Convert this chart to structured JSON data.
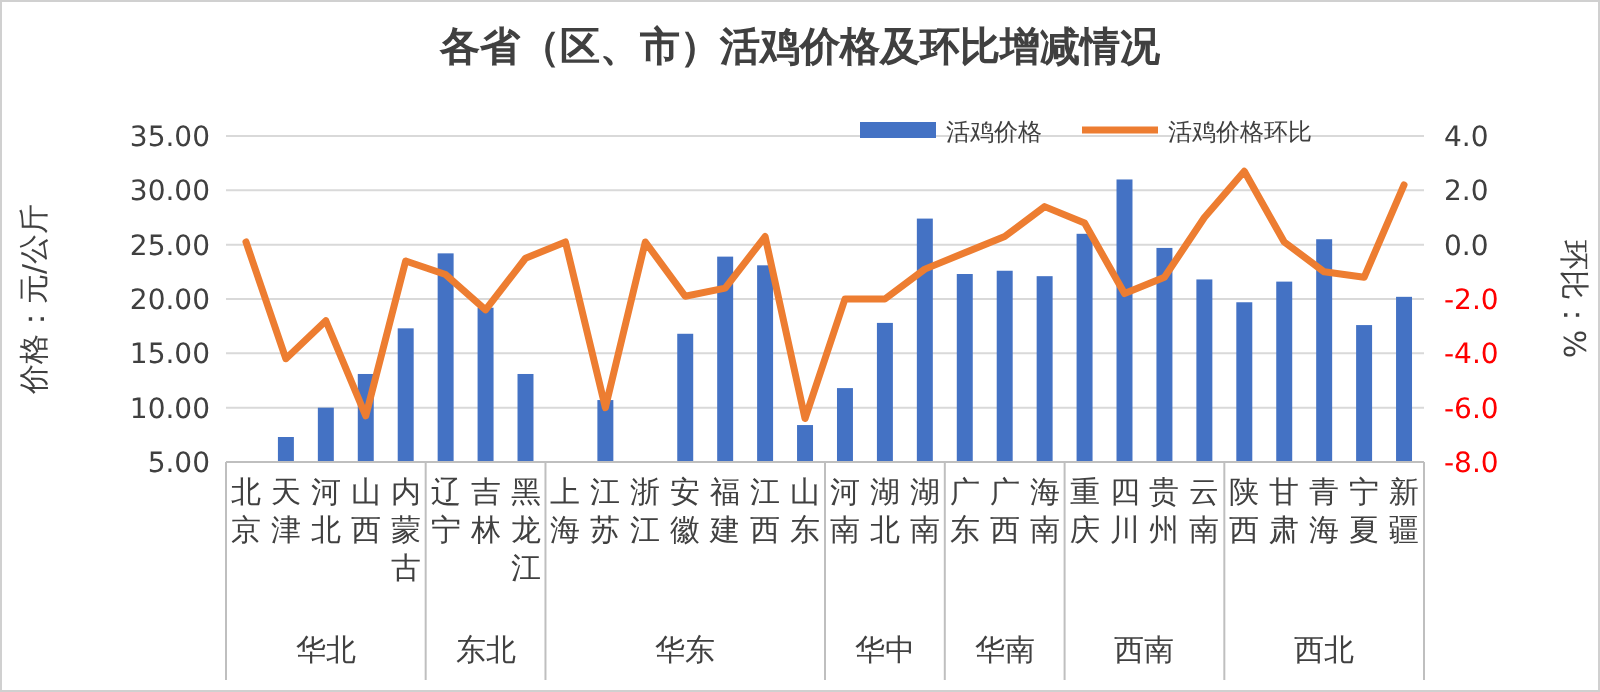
{
  "chart_data": {
    "type": "bar",
    "title": "各省（区、市）活鸡价格及环比增减情况",
    "ylabel": "价格：元/公斤",
    "y2label": "环比：%",
    "categories": [
      "北京",
      "天津",
      "河北",
      "山西",
      "内蒙古",
      "辽宁",
      "吉林",
      "黑龙江",
      "上海",
      "江苏",
      "浙江",
      "安徽",
      "福建",
      "江西",
      "山东",
      "河南",
      "湖北",
      "湖南",
      "广东",
      "广西",
      "海南",
      "重庆",
      "四川",
      "贵州",
      "云南",
      "陕西",
      "甘肃",
      "青海",
      "宁夏",
      "新疆"
    ],
    "series": [
      {
        "name": "活鸡价格",
        "color": "#4472c4",
        "values": [
          null,
          7.3,
          10.0,
          13.1,
          17.3,
          24.2,
          19.2,
          13.1,
          null,
          10.7,
          null,
          16.8,
          23.9,
          23.1,
          8.4,
          11.8,
          17.8,
          27.4,
          22.3,
          22.6,
          22.1,
          26.0,
          31.0,
          24.7,
          21.8,
          19.7,
          21.6,
          25.5,
          17.6,
          20.2
        ]
      },
      {
        "name": "活鸡价格环比",
        "type": "line",
        "axis": "y2",
        "color": "#ed7d31",
        "values": [
          0.1,
          -4.2,
          -2.8,
          -6.3,
          -0.6,
          -1.1,
          -2.4,
          -0.5,
          0.1,
          -6.0,
          0.1,
          -1.9,
          -1.6,
          0.3,
          -6.4,
          -2.0,
          -2.0,
          -0.9,
          -0.3,
          0.3,
          1.4,
          0.8,
          -1.8,
          -1.2,
          1.0,
          2.7,
          0.1,
          -1.0,
          -1.2,
          2.2
        ]
      }
    ],
    "ylim": [
      5,
      35
    ],
    "yticks": [
      {
        "value": 5,
        "label": "5.00"
      },
      {
        "value": 10,
        "label": "10.00"
      },
      {
        "value": 15,
        "label": "15.00"
      },
      {
        "value": 20,
        "label": "20.00"
      },
      {
        "value": 25,
        "label": "25.00"
      },
      {
        "value": 30,
        "label": "30.00"
      },
      {
        "value": 35,
        "label": "35.00"
      }
    ],
    "y2lim": [
      -8,
      4
    ],
    "y2ticks": [
      {
        "value": -8,
        "label": "-8.0"
      },
      {
        "value": -6,
        "label": "-6.0"
      },
      {
        "value": -4,
        "label": "-4.0"
      },
      {
        "value": -2,
        "label": "-2.0"
      },
      {
        "value": 0,
        "label": "0.0"
      },
      {
        "value": 2,
        "label": "2.0"
      },
      {
        "value": 4,
        "label": "4.0"
      }
    ],
    "annotations": [
      "华北",
      "东北",
      "华东",
      "华中",
      "华南",
      "西南",
      "西北"
    ],
    "grid": "y",
    "legend": "top right",
    "marker": "none",
    "line_style": "solid"
  }
}
